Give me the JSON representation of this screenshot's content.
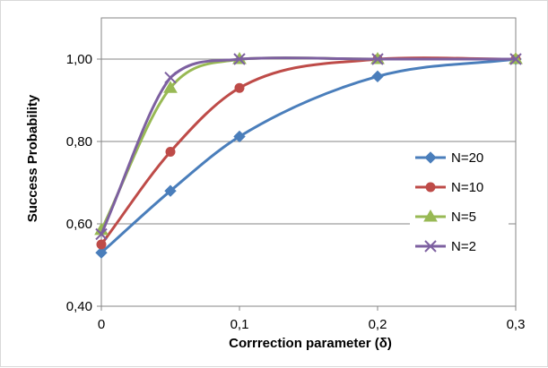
{
  "chart_data": {
    "type": "line",
    "title": "",
    "xlabel": "Corrrection  parameter (δ)",
    "ylabel": "Success Probability",
    "x": [
      0,
      0.05,
      0.1,
      0.2,
      0.3
    ],
    "xlim": [
      0,
      0.3
    ],
    "ylim": [
      0.4,
      1.1
    ],
    "x_ticks": [
      {
        "value": 0,
        "label": "0"
      },
      {
        "value": 0.1,
        "label": "0,1"
      },
      {
        "value": 0.2,
        "label": "0,2"
      },
      {
        "value": 0.3,
        "label": "0,3"
      }
    ],
    "y_ticks": [
      {
        "value": 0.4,
        "label": "0,40"
      },
      {
        "value": 0.6,
        "label": "0,60"
      },
      {
        "value": 0.8,
        "label": "0,80"
      },
      {
        "value": 1.0,
        "label": "1,00"
      }
    ],
    "grid": "horizontal",
    "legend_position": "right",
    "series": [
      {
        "name": "N=20",
        "color": "#4a7ebb",
        "marker": "diamond",
        "values": [
          0.53,
          0.68,
          0.812,
          0.958,
          1.0
        ]
      },
      {
        "name": "N=10",
        "color": "#be4b48",
        "marker": "circle",
        "values": [
          0.55,
          0.775,
          0.93,
          1.0,
          1.0
        ]
      },
      {
        "name": "N=5",
        "color": "#98b954",
        "marker": "triangle",
        "values": [
          0.585,
          0.93,
          1.0,
          1.0,
          1.0
        ]
      },
      {
        "name": "N=2",
        "color": "#7d60a0",
        "marker": "x",
        "values": [
          0.575,
          0.955,
          1.0,
          1.0,
          1.0
        ]
      }
    ]
  }
}
